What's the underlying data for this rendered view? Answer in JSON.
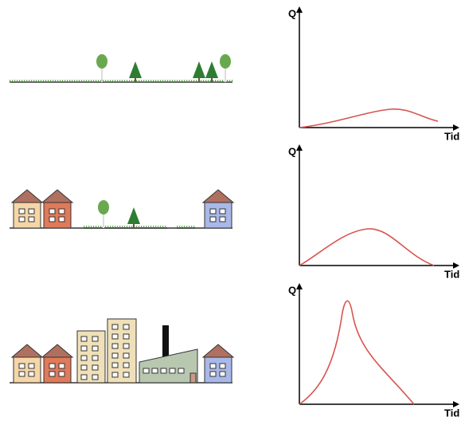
{
  "panels": [
    {
      "y_label": "Q",
      "x_label": "Tid"
    },
    {
      "y_label": "Q",
      "x_label": "Tid"
    },
    {
      "y_label": "Q",
      "x_label": "Tid"
    }
  ]
}
